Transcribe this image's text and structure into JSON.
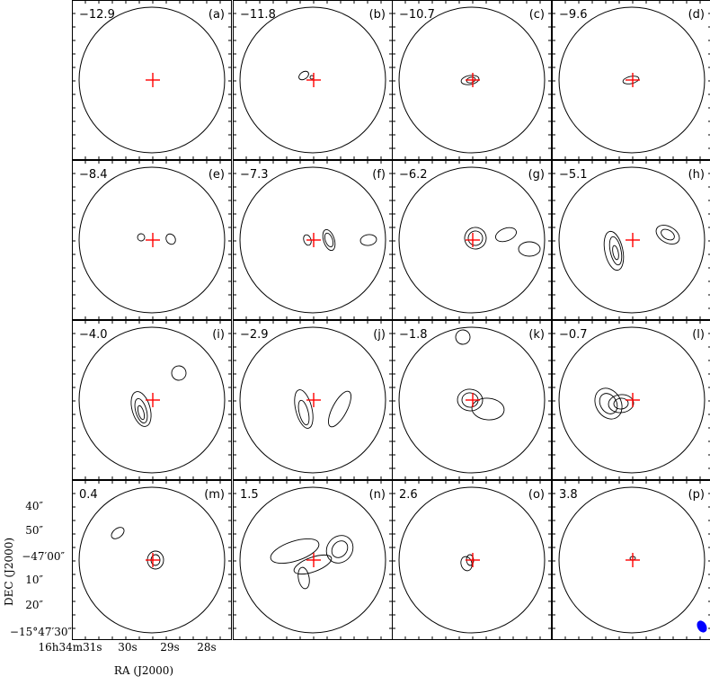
{
  "figure": {
    "panels": [
      {
        "letter": "(a)",
        "velocity": "−12.9"
      },
      {
        "letter": "(b)",
        "velocity": "−11.8"
      },
      {
        "letter": "(c)",
        "velocity": "−10.7"
      },
      {
        "letter": "(d)",
        "velocity": "−9.6"
      },
      {
        "letter": "(e)",
        "velocity": "−8.4"
      },
      {
        "letter": "(f)",
        "velocity": "−7.3"
      },
      {
        "letter": "(g)",
        "velocity": "−6.2"
      },
      {
        "letter": "(h)",
        "velocity": "−5.1"
      },
      {
        "letter": "(i)",
        "velocity": "−4.0"
      },
      {
        "letter": "(j)",
        "velocity": "−2.9"
      },
      {
        "letter": "(k)",
        "velocity": "−1.8"
      },
      {
        "letter": "(l)",
        "velocity": "−0.7"
      },
      {
        "letter": "(m)",
        "velocity": "0.4"
      },
      {
        "letter": "(n)",
        "velocity": "1.5"
      },
      {
        "letter": "(o)",
        "velocity": "2.6"
      },
      {
        "letter": "(p)",
        "velocity": "3.8"
      }
    ],
    "yaxis": {
      "title": "DEC (J2000)",
      "ticks": [
        "40″",
        "50″",
        "−47′00″",
        "10″",
        "20″",
        "−15°47′30″"
      ]
    },
    "xaxis": {
      "title": "RA (J2000)",
      "ticks": [
        "16h34m31s",
        "30s",
        "29s",
        "28s"
      ]
    },
    "colors": {
      "cross": "#ff0000",
      "beam": "#0000ff",
      "contour": "#000000"
    }
  }
}
